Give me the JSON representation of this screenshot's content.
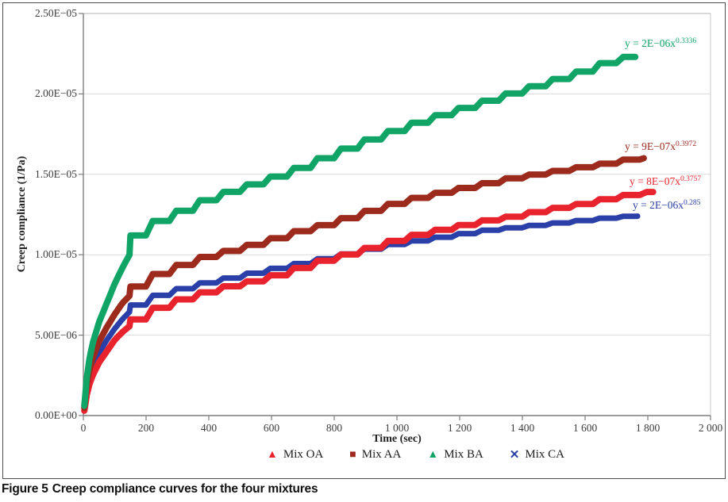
{
  "figure": {
    "caption_label": "Figure 5",
    "caption_text": "Creep compliance curves for the four mixtures"
  },
  "chart_data": {
    "type": "scatter",
    "title": "",
    "xlabel": "Time (sec)",
    "ylabel": "Creep compliance (1/Pa)",
    "xlim": [
      0,
      2000
    ],
    "ylim": [
      0,
      2.5e-05
    ],
    "grid": "horizontal-light",
    "legend_position": "bottom-center",
    "x_ticks": [
      {
        "value": 0,
        "label": "0"
      },
      {
        "value": 200,
        "label": "200"
      },
      {
        "value": 400,
        "label": "400"
      },
      {
        "value": 600,
        "label": "600"
      },
      {
        "value": 800,
        "label": "800"
      },
      {
        "value": 1000,
        "label": "1 000"
      },
      {
        "value": 1200,
        "label": "1 200"
      },
      {
        "value": 1400,
        "label": "1 400"
      },
      {
        "value": 1600,
        "label": "1 600"
      },
      {
        "value": 1800,
        "label": "1 800"
      },
      {
        "value": 2000,
        "label": "2 000"
      }
    ],
    "y_ticks": [
      {
        "value": 0,
        "label": "0.00E+00"
      },
      {
        "value": 5e-06,
        "label": "5.00E−06"
      },
      {
        "value": 1e-05,
        "label": "1.00E−05"
      },
      {
        "value": 1.5e-05,
        "label": "1.50E−05"
      },
      {
        "value": 2e-05,
        "label": "2.00E−05"
      },
      {
        "value": 2.5e-05,
        "label": "2.50E−05"
      }
    ],
    "series": [
      {
        "name": "Mix OA",
        "marker": "triangle",
        "color": "#e8232d",
        "trendline": {
          "prefix": "y = 8E−07x",
          "exponent": "0.3757"
        },
        "points": [
          [
            5,
            5e-07
          ],
          [
            10,
            1.2e-06
          ],
          [
            20,
            2e-06
          ],
          [
            30,
            2.5e-06
          ],
          [
            50,
            3.3e-06
          ],
          [
            75,
            4e-06
          ],
          [
            100,
            4.7e-06
          ],
          [
            125,
            5.2e-06
          ],
          [
            150,
            5.6e-06
          ],
          [
            200,
            6.1e-06
          ],
          [
            250,
            6.6e-06
          ],
          [
            300,
            7e-06
          ],
          [
            400,
            7.6e-06
          ],
          [
            500,
            8.1e-06
          ],
          [
            600,
            8.5e-06
          ],
          [
            700,
            9.1e-06
          ],
          [
            800,
            9.7e-06
          ],
          [
            900,
            1.02e-05
          ],
          [
            1000,
            1.08e-05
          ],
          [
            1100,
            1.13e-05
          ],
          [
            1200,
            1.17e-05
          ],
          [
            1300,
            1.21e-05
          ],
          [
            1400,
            1.24e-05
          ],
          [
            1500,
            1.28e-05
          ],
          [
            1600,
            1.31e-05
          ],
          [
            1700,
            1.35e-05
          ],
          [
            1817,
            1.39e-05
          ]
        ]
      },
      {
        "name": "Mix AA",
        "marker": "square",
        "color": "#9c2b1e",
        "trendline": {
          "prefix": "y = 9E−07x",
          "exponent": "0.3972"
        },
        "points": [
          [
            5,
            8e-07
          ],
          [
            10,
            1.8e-06
          ],
          [
            20,
            2.9e-06
          ],
          [
            30,
            3.6e-06
          ],
          [
            50,
            4.6e-06
          ],
          [
            75,
            5.5e-06
          ],
          [
            100,
            6.3e-06
          ],
          [
            125,
            7e-06
          ],
          [
            150,
            7.5e-06
          ],
          [
            200,
            8.2e-06
          ],
          [
            250,
            8.7e-06
          ],
          [
            300,
            9.1e-06
          ],
          [
            400,
            9.8e-06
          ],
          [
            500,
            1.03e-05
          ],
          [
            600,
            1.08e-05
          ],
          [
            700,
            1.14e-05
          ],
          [
            800,
            1.19e-05
          ],
          [
            900,
            1.25e-05
          ],
          [
            1000,
            1.31e-05
          ],
          [
            1100,
            1.36e-05
          ],
          [
            1200,
            1.4e-05
          ],
          [
            1300,
            1.44e-05
          ],
          [
            1400,
            1.48e-05
          ],
          [
            1500,
            1.51e-05
          ],
          [
            1600,
            1.54e-05
          ],
          [
            1700,
            1.57e-05
          ],
          [
            1787,
            1.6e-05
          ]
        ]
      },
      {
        "name": "Mix BA",
        "marker": "triangle",
        "color": "#10a466",
        "trendline": {
          "prefix": "y = 2E−06x",
          "exponent": "0.3336"
        },
        "points": [
          [
            5,
            1e-06
          ],
          [
            10,
            2.2e-06
          ],
          [
            20,
            3.6e-06
          ],
          [
            30,
            4.5e-06
          ],
          [
            50,
            5.8e-06
          ],
          [
            75,
            7e-06
          ],
          [
            100,
            8.2e-06
          ],
          [
            125,
            9.2e-06
          ],
          [
            150,
            1.01e-05
          ],
          [
            175,
            1.09e-05
          ],
          [
            200,
            1.15e-05
          ],
          [
            250,
            1.2e-05
          ],
          [
            300,
            1.24e-05
          ],
          [
            400,
            1.33e-05
          ],
          [
            500,
            1.4e-05
          ],
          [
            600,
            1.46e-05
          ],
          [
            700,
            1.53e-05
          ],
          [
            800,
            1.61e-05
          ],
          [
            900,
            1.69e-05
          ],
          [
            1000,
            1.76e-05
          ],
          [
            1100,
            1.83e-05
          ],
          [
            1200,
            1.89e-05
          ],
          [
            1300,
            1.95e-05
          ],
          [
            1400,
            2.01e-05
          ],
          [
            1500,
            2.07e-05
          ],
          [
            1600,
            2.13e-05
          ],
          [
            1700,
            2.2e-05
          ],
          [
            1760,
            2.23e-05
          ]
        ]
      },
      {
        "name": "Mix CA",
        "marker": "x",
        "color": "#2a3fa8",
        "trendline": {
          "prefix": "y = 2E−06x",
          "exponent": "0.285"
        },
        "points": [
          [
            5,
            7e-07
          ],
          [
            10,
            1.5e-06
          ],
          [
            20,
            2.4e-06
          ],
          [
            30,
            3e-06
          ],
          [
            50,
            3.9e-06
          ],
          [
            75,
            4.7e-06
          ],
          [
            100,
            5.4e-06
          ],
          [
            125,
            6e-06
          ],
          [
            150,
            6.5e-06
          ],
          [
            200,
            7e-06
          ],
          [
            250,
            7.4e-06
          ],
          [
            300,
            7.7e-06
          ],
          [
            400,
            8.2e-06
          ],
          [
            500,
            8.6e-06
          ],
          [
            600,
            9e-06
          ],
          [
            700,
            9.4e-06
          ],
          [
            800,
            9.8e-06
          ],
          [
            900,
            1.02e-05
          ],
          [
            1000,
            1.06e-05
          ],
          [
            1100,
            1.09e-05
          ],
          [
            1200,
            1.12e-05
          ],
          [
            1300,
            1.15e-05
          ],
          [
            1400,
            1.17e-05
          ],
          [
            1500,
            1.19e-05
          ],
          [
            1600,
            1.21e-05
          ],
          [
            1700,
            1.23e-05
          ],
          [
            1767,
            1.24e-05
          ]
        ]
      }
    ]
  }
}
